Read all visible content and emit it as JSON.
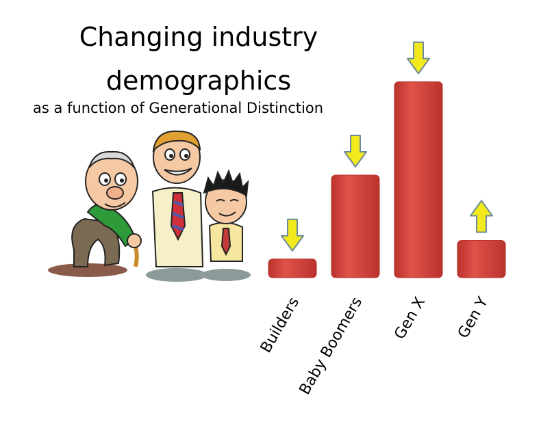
{
  "title_lines": [
    "Changing industry",
    "demographics"
  ],
  "subtitle": "as a function of Generational Distinction",
  "illustration": {
    "description_icons": [
      "elderly-man-with-cane-icon",
      "middle-aged-man-with-tie-icon",
      "young-man-with-spiky-hair-icon"
    ]
  },
  "colors": {
    "bar": "#e0524a",
    "bar_dark": "#b9332c",
    "arrow_fill": "#f2ea1c",
    "arrow_stroke": "#6b8a9a"
  },
  "chart_data": {
    "type": "bar",
    "title": "",
    "xlabel": "",
    "ylabel": "",
    "categories": [
      "Builders",
      "Baby Boomers",
      "Gen X",
      "Gen Y"
    ],
    "values": [
      1.0,
      5.5,
      10.5,
      2.0
    ],
    "ylim": [
      0,
      11
    ],
    "trend": [
      "down",
      "down",
      "down",
      "up"
    ],
    "grid": false,
    "legend": "none"
  }
}
